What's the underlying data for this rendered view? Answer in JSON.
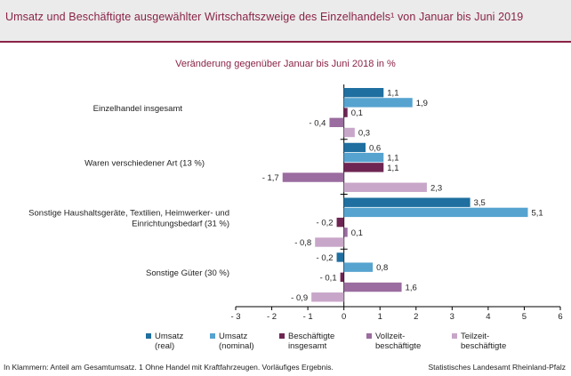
{
  "title": "Umsatz und Beschäftigte ausgewählter Wirtschaftszweige des Einzelhandels¹ von Januar bis Juni 2019",
  "footer": {
    "note": "In Klammern: Anteil am Gesamtumsatz. 1 Ohne Handel mit Kraftfahrzeugen. Vorläufiges Ergebnis.",
    "source": "Statistisches Landesamt Rheinland-Pfalz"
  },
  "chart_data": {
    "type": "bar",
    "orientation": "horizontal",
    "title": "Veränderung gegenüber Januar bis Juni 2018 in %",
    "xlim": [
      -3,
      6
    ],
    "xticks": [
      -3,
      -2,
      -1,
      0,
      1,
      2,
      3,
      4,
      5,
      6
    ],
    "xtick_labels": [
      "- 3",
      "- 2",
      "- 1",
      "0",
      "1",
      "2",
      "3",
      "4",
      "5",
      "6"
    ],
    "grid": false,
    "legend_position": "bottom",
    "categories": [
      "Einzelhandel insgesamt",
      "Waren verschiedener Art (13 %)",
      "Sonstige Haushaltsgeräte, Textilien, Heimwerker- und Einrichtungsbedarf (31 %)",
      "Sonstige Güter (30 %)"
    ],
    "series": [
      {
        "name": "Umsatz (real)",
        "color": "#1f6fa0",
        "values": [
          1.1,
          0.6,
          3.5,
          -0.2
        ],
        "labels": [
          "1,1",
          "0,6",
          "3,5",
          "- 0,2"
        ]
      },
      {
        "name": "Umsatz (nominal)",
        "color": "#56a3d0",
        "values": [
          1.9,
          1.1,
          5.1,
          0.8
        ],
        "labels": [
          "1,9",
          "1,1",
          "5,1",
          "0,8"
        ]
      },
      {
        "name": "Beschäftigte insgesamt",
        "color": "#6e2553",
        "values": [
          0.1,
          1.1,
          -0.2,
          -0.1
        ],
        "labels": [
          "0,1",
          "1,1",
          "- 0,2",
          "- 0,1"
        ]
      },
      {
        "name": "Vollzeit-beschäftigte",
        "color": "#9a6c9f",
        "values": [
          -0.4,
          -1.7,
          0.1,
          1.6
        ],
        "labels": [
          "- 0,4",
          "- 1,7",
          "0,1",
          "1,6"
        ]
      },
      {
        "name": "Teilzeit-beschäftigte",
        "color": "#c8a6c9",
        "values": [
          0.3,
          2.3,
          -0.8,
          -0.9
        ],
        "labels": [
          "0,3",
          "2,3",
          "- 0,8",
          "- 0,9"
        ]
      }
    ]
  }
}
